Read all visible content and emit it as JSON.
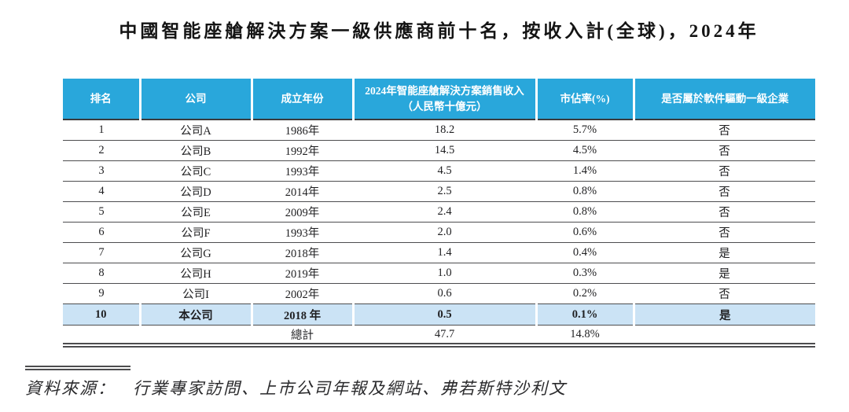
{
  "title": "中國智能座艙解決方案一級供應商前十名，按收入計(全球)，2024年",
  "table": {
    "headers": [
      "排名",
      "公司",
      "成立年份",
      "2024年智能座艙解決方案銷售收入\n（人民幣十億元）",
      "市佔率(%)",
      "是否屬於軟件驅動一級企業"
    ],
    "rows": [
      {
        "rank": "1",
        "company": "公司A",
        "founded": "1986年",
        "revenue": "18.2",
        "share": "5.7%",
        "software_driven": "否",
        "highlight": false
      },
      {
        "rank": "2",
        "company": "公司B",
        "founded": "1992年",
        "revenue": "14.5",
        "share": "4.5%",
        "software_driven": "否",
        "highlight": false
      },
      {
        "rank": "3",
        "company": "公司C",
        "founded": "1993年",
        "revenue": "4.5",
        "share": "1.4%",
        "software_driven": "否",
        "highlight": false
      },
      {
        "rank": "4",
        "company": "公司D",
        "founded": "2014年",
        "revenue": "2.5",
        "share": "0.8%",
        "software_driven": "否",
        "highlight": false
      },
      {
        "rank": "5",
        "company": "公司E",
        "founded": "2009年",
        "revenue": "2.4",
        "share": "0.8%",
        "software_driven": "否",
        "highlight": false
      },
      {
        "rank": "6",
        "company": "公司F",
        "founded": "1993年",
        "revenue": "2.0",
        "share": "0.6%",
        "software_driven": "否",
        "highlight": false
      },
      {
        "rank": "7",
        "company": "公司G",
        "founded": "2018年",
        "revenue": "1.4",
        "share": "0.4%",
        "software_driven": "是",
        "highlight": false
      },
      {
        "rank": "8",
        "company": "公司H",
        "founded": "2019年",
        "revenue": "1.0",
        "share": "0.3%",
        "software_driven": "是",
        "highlight": false
      },
      {
        "rank": "9",
        "company": "公司I",
        "founded": "2002年",
        "revenue": "0.6",
        "share": "0.2%",
        "software_driven": "否",
        "highlight": false
      },
      {
        "rank": "10",
        "company": "本公司",
        "founded": "2018 年",
        "revenue": "0.5",
        "share": "0.1%",
        "software_driven": "是",
        "highlight": true
      }
    ],
    "total_row": {
      "label": "總計",
      "revenue": "47.7",
      "share": "14.8%"
    }
  },
  "source": {
    "label": "資料來源：",
    "text": "行業專家訪問、上市公司年報及網站、弗若斯特沙利文"
  },
  "colors": {
    "header_bg": "#29A7DB",
    "header_text": "#FFFFFF",
    "highlight_row_bg": "#CBE3F5",
    "rule_line": "#4D4D4F",
    "body_text": "#1F1F21"
  }
}
